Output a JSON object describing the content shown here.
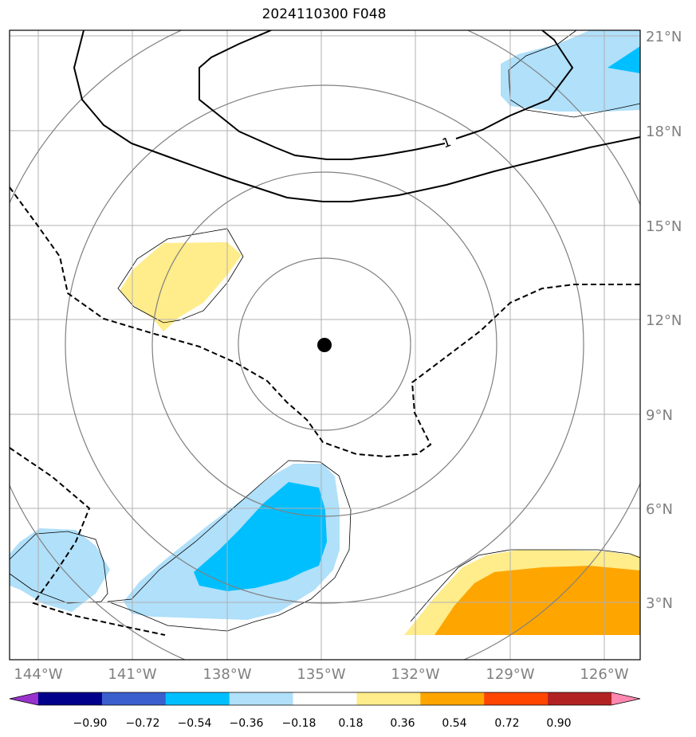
{
  "title": "2024110300 F048",
  "axes": {
    "lon_labels": [
      "144°W",
      "141°W",
      "138°W",
      "135°W",
      "132°W",
      "129°W",
      "126°W"
    ],
    "lat_labels": [
      "21°N",
      "18°N",
      "15°N",
      "12°N",
      "9°N",
      "6°N",
      "3°N"
    ],
    "label_color": "#808080"
  },
  "map": {
    "center_marker": {
      "lon": -134.9,
      "lat": 11.2
    },
    "contour_label": "1"
  },
  "colorbar": {
    "ticks": [
      "−0.90",
      "−0.72",
      "−0.54",
      "−0.36",
      "−0.18",
      "0.18",
      "0.36",
      "0.54",
      "0.72",
      "0.90"
    ],
    "colors": [
      "#9932cc",
      "#00008b",
      "#3a5fcd",
      "#00bfff",
      "#b0e0fa",
      "#ffffff",
      "#ffec8b",
      "#ffa500",
      "#ff4500",
      "#b22222",
      "#ff87b0"
    ]
  }
}
